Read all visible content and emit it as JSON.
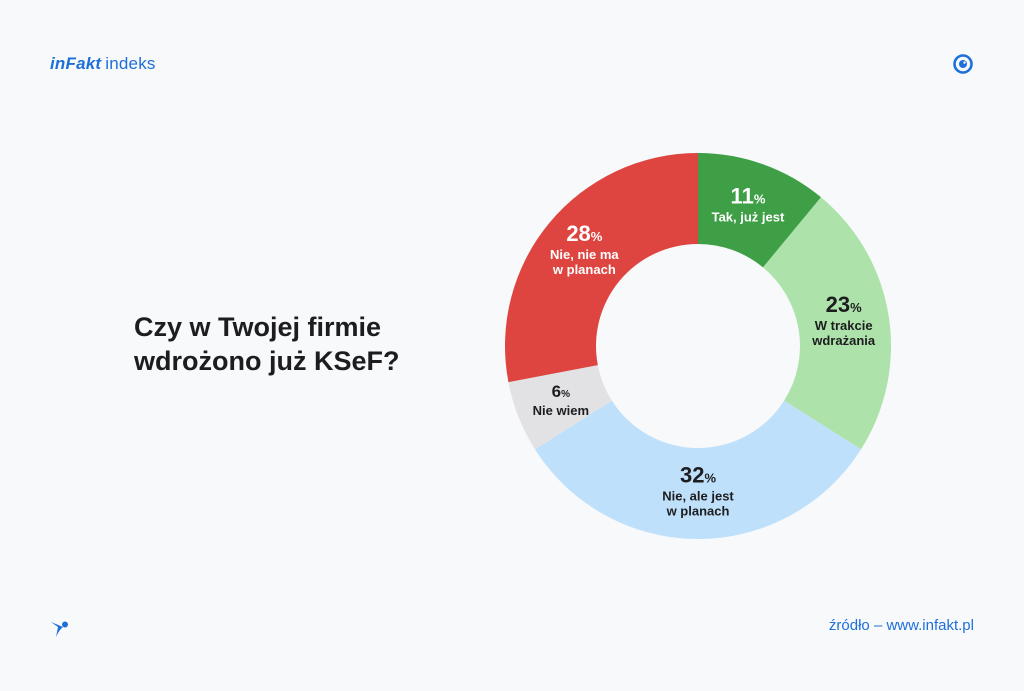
{
  "header": {
    "brand_logo": "inFakt",
    "brand_sub": "indeks",
    "top_icon": "eye-icon"
  },
  "question": "Czy w Twojej firmie wdrożono już KSeF?",
  "footer": {
    "source": "źródło – www.infakt.pl",
    "bottom_icon": "bird-logo-icon"
  },
  "chart_data": {
    "type": "pie",
    "donut": true,
    "unit": "%",
    "title": "",
    "slices": [
      {
        "label": "Tak, już jest",
        "label_lines": [
          "Tak, już jest"
        ],
        "value": 11,
        "color": "#3f9f47",
        "text": "light"
      },
      {
        "label": "W trakcie wdrażania",
        "label_lines": [
          "W trakcie",
          "wdrażania"
        ],
        "value": 23,
        "color": "#ade2aa",
        "text": "dark"
      },
      {
        "label": "Nie, ale jest w planach",
        "label_lines": [
          "Nie, ale jest",
          "w planach"
        ],
        "value": 32,
        "color": "#bfe0fb",
        "text": "dark"
      },
      {
        "label": "Nie wiem",
        "label_lines": [
          "Nie wiem"
        ],
        "value": 6,
        "color": "#e2e2e4",
        "text": "dark"
      },
      {
        "label": "Nie, nie ma w planach",
        "label_lines": [
          "Nie, nie ma",
          "w planach"
        ],
        "value": 28,
        "color": "#de4540",
        "text": "light"
      }
    ]
  }
}
